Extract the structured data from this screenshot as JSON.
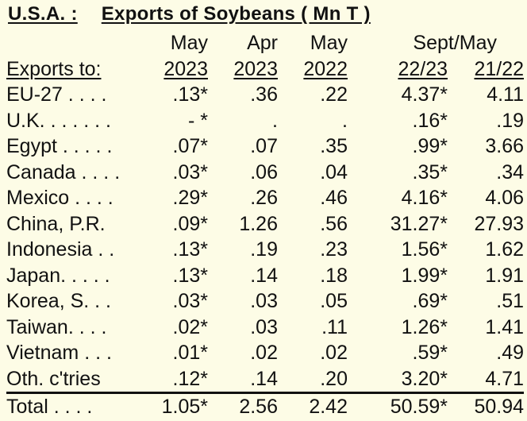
{
  "title": {
    "country": "U.S.A. :",
    "text": "Exports of Soybeans  ( Mn T )"
  },
  "header": {
    "row1": [
      "May",
      "Apr",
      "May",
      "Sept/May"
    ],
    "label": "Exports to:",
    "row2": [
      "2023",
      "2023",
      "2022",
      "22/23",
      "21/22"
    ]
  },
  "rows": [
    {
      "name": "EU-27 . . . .",
      "v": [
        ".13*",
        ".36",
        ".22",
        "4.37*",
        "4.11"
      ]
    },
    {
      "name": "U.K. . . . . . .",
      "v": [
        "- *",
        ".",
        ".",
        ".16*",
        ".19"
      ]
    },
    {
      "name": "Egypt . . . . .",
      "v": [
        ".07*",
        ".07",
        ".35",
        ".99*",
        "3.66"
      ]
    },
    {
      "name": "Canada . . . .",
      "v": [
        ".03*",
        ".06",
        ".04",
        ".35*",
        ".34"
      ]
    },
    {
      "name": "Mexico . . . .",
      "v": [
        ".29*",
        ".26",
        ".46",
        "4.16*",
        "4.06"
      ]
    },
    {
      "name": "China, P.R.",
      "v": [
        ".09*",
        "1.26",
        ".56",
        "31.27*",
        "27.93"
      ]
    },
    {
      "name": "Indonesia . .",
      "v": [
        ".13*",
        ".19",
        ".23",
        "1.56*",
        "1.62"
      ]
    },
    {
      "name": "Japan. . . . .",
      "v": [
        ".13*",
        ".14",
        ".18",
        "1.99*",
        "1.91"
      ]
    },
    {
      "name": "Korea, S. . .",
      "v": [
        ".03*",
        ".03",
        ".05",
        ".69*",
        ".51"
      ]
    },
    {
      "name": "Taiwan. . . .",
      "v": [
        ".02*",
        ".03",
        ".11",
        "1.26*",
        "1.41"
      ]
    },
    {
      "name": "Vietnam . . .",
      "v": [
        ".01*",
        ".02",
        ".02",
        ".59*",
        ".49"
      ]
    },
    {
      "name": "Oth. c'tries",
      "v": [
        ".12*",
        ".14",
        ".20",
        "3.20*",
        "4.71"
      ]
    }
  ],
  "total": {
    "name": "Total  . . . .",
    "v": [
      "1.05*",
      "2.56",
      "2.42",
      "50.59*",
      "50.94"
    ]
  },
  "colors": {
    "background": "#fdfce6",
    "text": "#111111"
  }
}
